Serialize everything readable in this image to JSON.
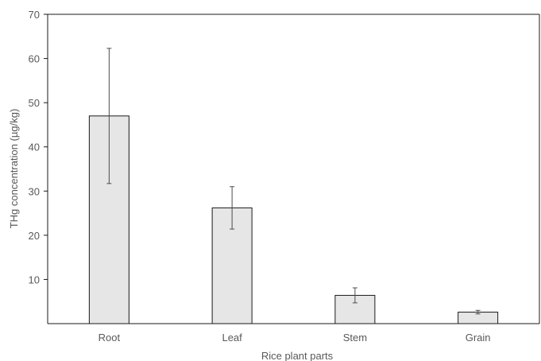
{
  "chart_data": {
    "type": "bar",
    "title": "",
    "xlabel": "Rice plant parts",
    "ylabel": "THg concentration (µg/kg)",
    "categories": [
      "Root",
      "Leaf",
      "Stem",
      "Grain"
    ],
    "values": [
      47.0,
      26.2,
      6.4,
      2.6
    ],
    "error_bars": [
      15.3,
      4.8,
      1.7,
      0.4
    ],
    "ylim": [
      0,
      70
    ],
    "y_ticks": [
      70,
      60,
      50,
      40,
      30,
      20,
      10
    ],
    "grid": false,
    "legend": "none",
    "colors": {
      "bar_fill": "#e6e6e6",
      "bar_stroke": "#1a1a1a",
      "axis": "#1a1a1a",
      "error_bar": "#4d4d4d",
      "text": "#595959"
    }
  }
}
